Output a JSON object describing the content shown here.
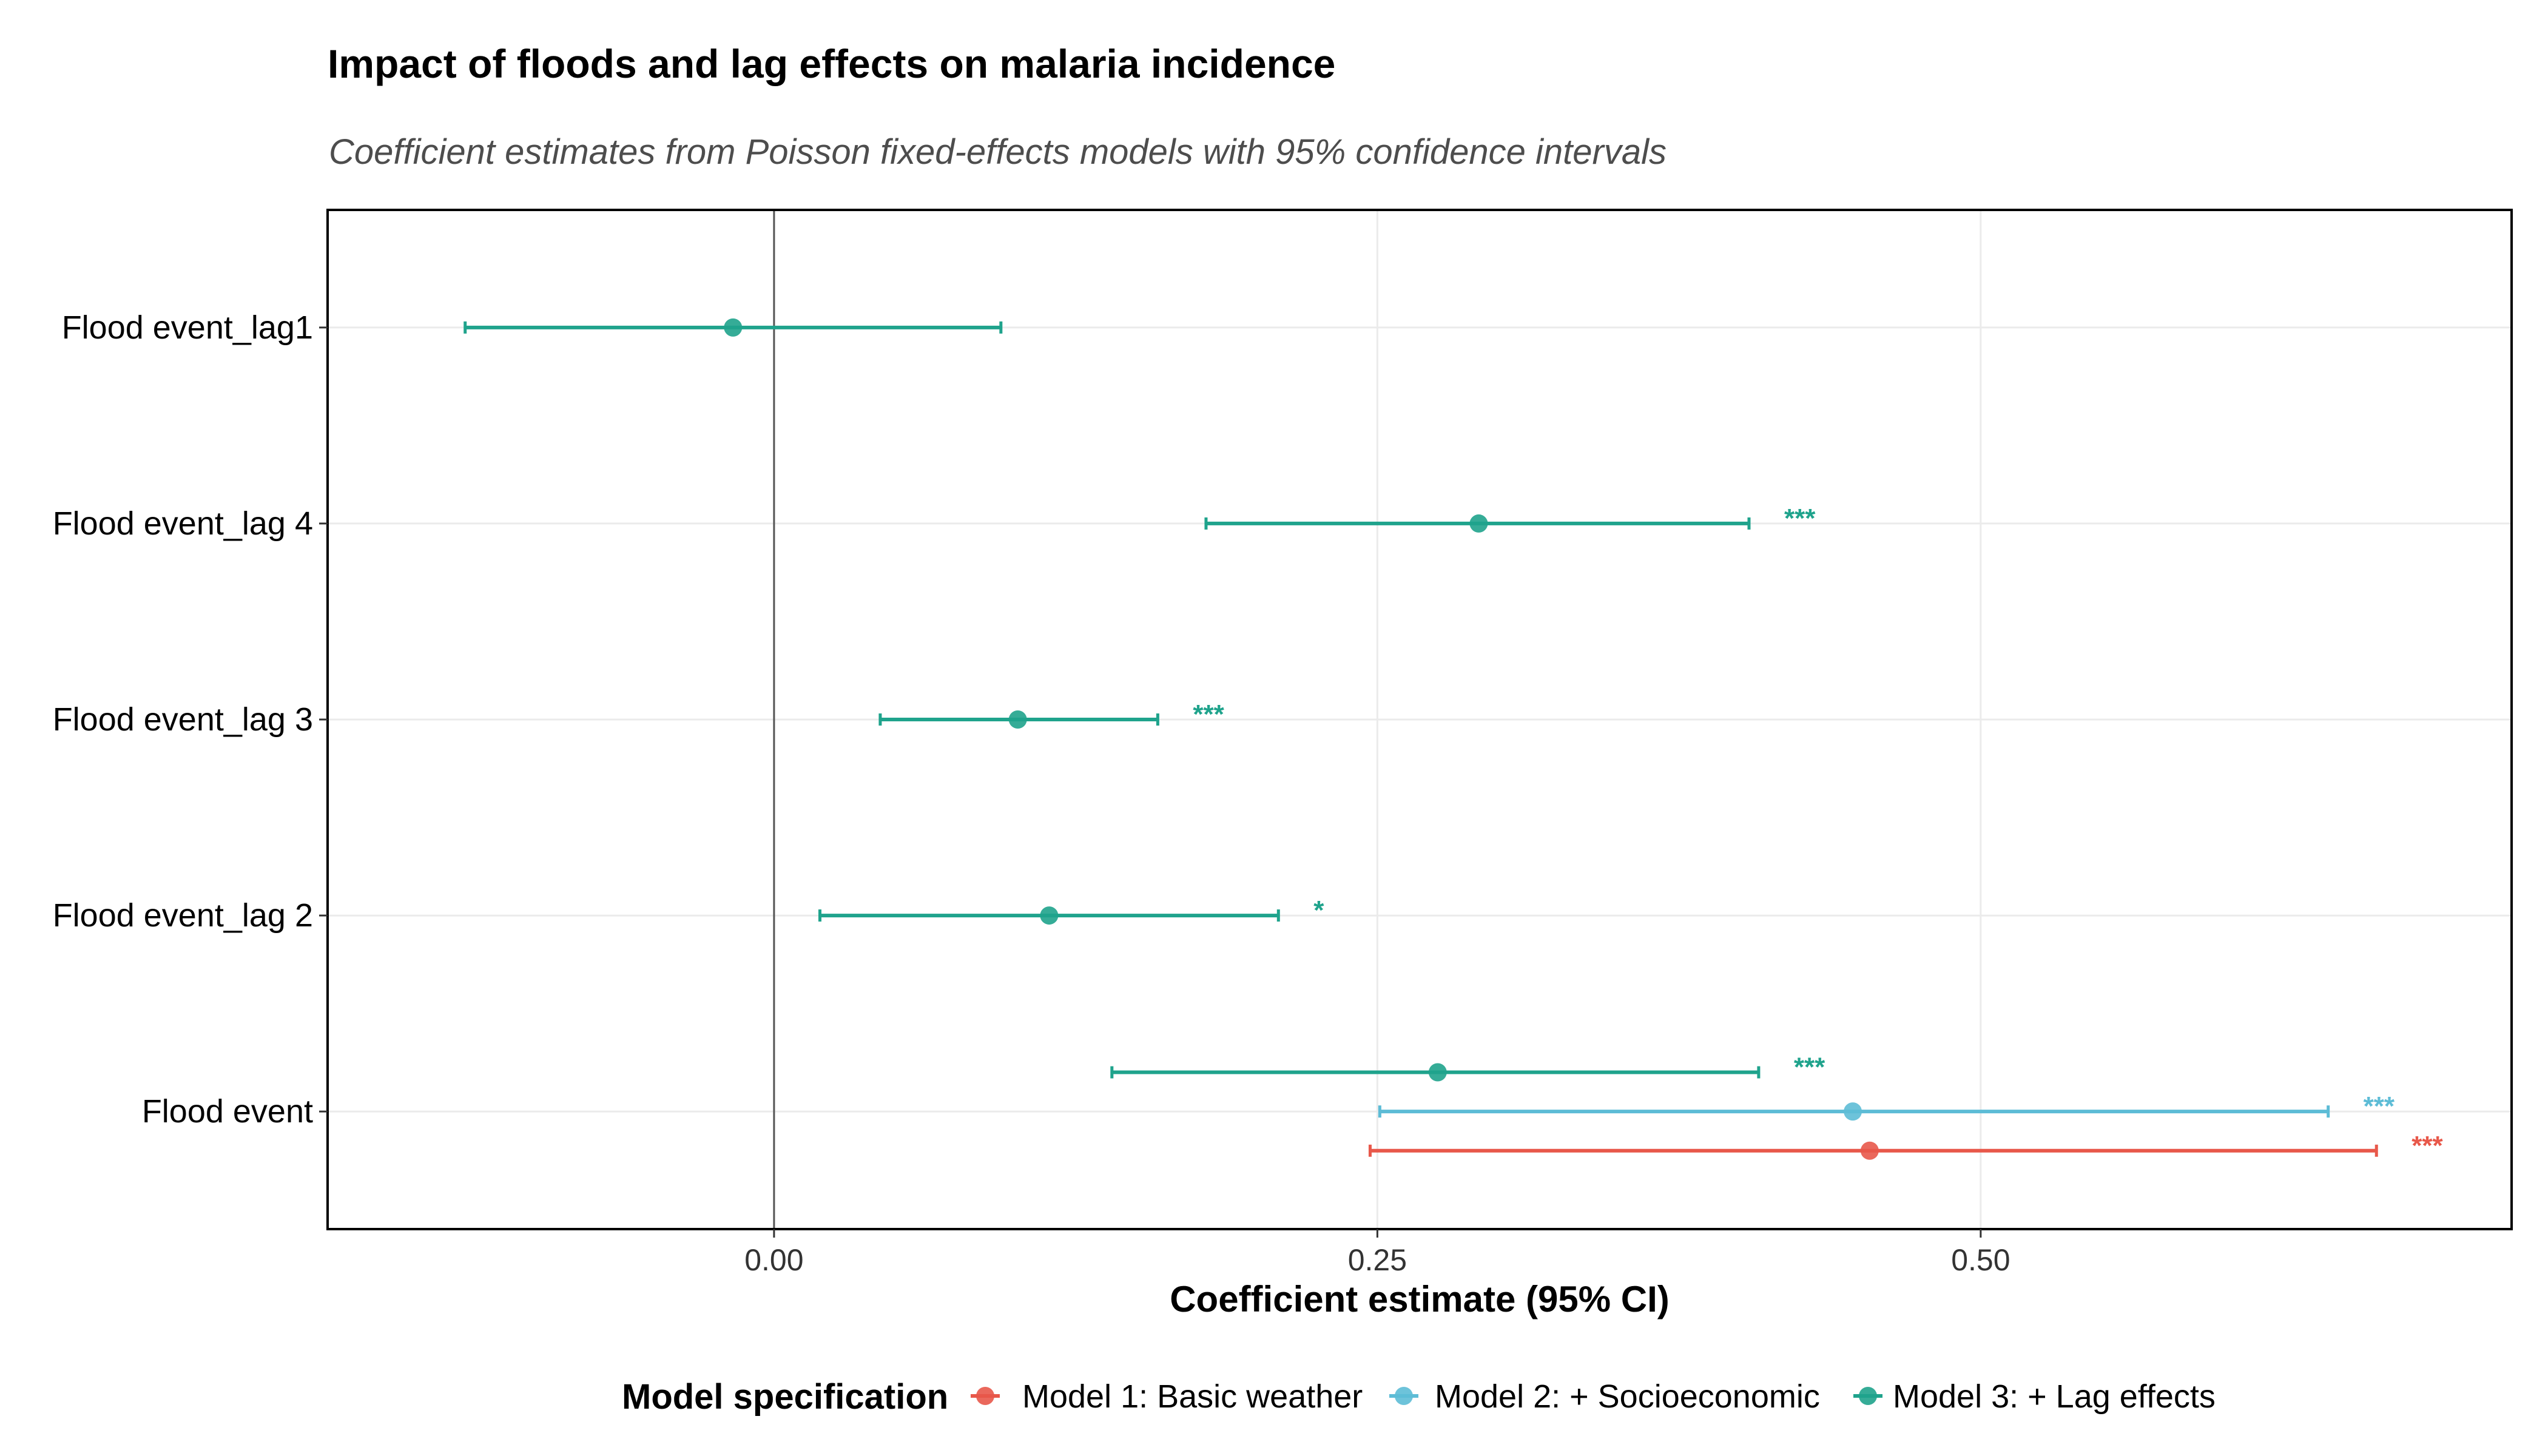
{
  "chart_data": {
    "type": "scatter",
    "title": "Impact of floods and lag effects on malaria incidence",
    "subtitle": "Coefficient estimates from Poisson fixed-effects models with 95% confidence intervals",
    "xlabel": "Coefficient estimate (95% CI)",
    "ylabel": "",
    "xlim": [
      -0.185,
      0.72
    ],
    "x_ticks": [
      0.0,
      0.25,
      0.5
    ],
    "x_tick_labels": [
      "0.00",
      "0.25",
      "0.50"
    ],
    "reference_line_x": 0,
    "grid": true,
    "categories": [
      "Flood event_lag1",
      "Flood event_lag 4",
      "Flood event_lag 3",
      "Flood event_lag 2",
      "Flood event"
    ],
    "legend": {
      "title": "Model specification",
      "position": "bottom"
    },
    "series": [
      {
        "name": "Model 1: Basic weather",
        "color": "#E8584A",
        "points": [
          {
            "category": "Flood event",
            "estimate": 0.454,
            "ci_low": 0.247,
            "ci_high": 0.664,
            "sig": "***"
          }
        ]
      },
      {
        "name": "Model 2: + Socioeconomic",
        "color": "#5DBCD6",
        "points": [
          {
            "category": "Flood event",
            "estimate": 0.447,
            "ci_low": 0.251,
            "ci_high": 0.644,
            "sig": "***"
          }
        ]
      },
      {
        "name": "Model 3: + Lag effects",
        "color": "#1FA38C",
        "points": [
          {
            "category": "Flood event_lag1",
            "estimate": -0.017,
            "ci_low": -0.128,
            "ci_high": 0.094,
            "sig": ""
          },
          {
            "category": "Flood event_lag 4",
            "estimate": 0.292,
            "ci_low": 0.179,
            "ci_high": 0.404,
            "sig": "***"
          },
          {
            "category": "Flood event_lag 3",
            "estimate": 0.101,
            "ci_low": 0.044,
            "ci_high": 0.159,
            "sig": "***"
          },
          {
            "category": "Flood event_lag 2",
            "estimate": 0.114,
            "ci_low": 0.019,
            "ci_high": 0.209,
            "sig": "*"
          },
          {
            "category": "Flood event",
            "estimate": 0.275,
            "ci_low": 0.14,
            "ci_high": 0.408,
            "sig": "***"
          }
        ]
      }
    ]
  }
}
